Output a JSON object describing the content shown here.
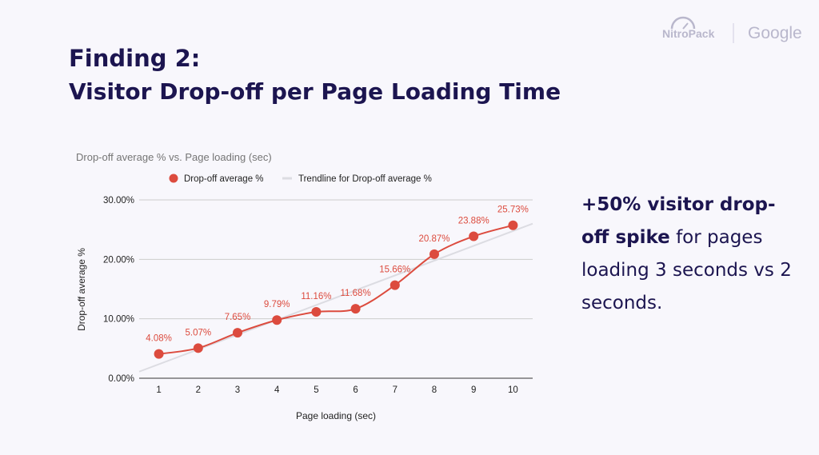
{
  "header": {
    "title": "Finding 2:",
    "subtitle": "Visitor Drop-off per Page Loading Time"
  },
  "logos": {
    "nitropack": "NitroPack",
    "google": "Google"
  },
  "callout": {
    "bold": "+50% visitor drop-off spike",
    "rest": " for pages loading 3 seconds vs 2 seconds."
  },
  "chart_data": {
    "type": "line",
    "title": "Drop-off average % vs. Page loading (sec)",
    "xlabel": "Page loading (sec)",
    "ylabel": "Drop-off average %",
    "x": [
      1,
      2,
      3,
      4,
      5,
      6,
      7,
      8,
      9,
      10
    ],
    "series": [
      {
        "name": "Drop-off average %",
        "values": [
          4.08,
          5.07,
          7.65,
          9.79,
          11.16,
          11.68,
          15.66,
          20.87,
          23.88,
          25.73
        ],
        "labels": [
          "4.08%",
          "5.07%",
          "7.65%",
          "9.79%",
          "11.16%",
          "11.68%",
          "15.66%",
          "20.87%",
          "23.88%",
          "25.73%"
        ],
        "color": "#dc4b3e"
      }
    ],
    "trendline": {
      "name": "Trendline for Drop-off average %",
      "type": "linear",
      "color": "#dcdce2"
    },
    "ylim": [
      0,
      30
    ],
    "yticks": [
      "0.00%",
      "10.00%",
      "20.00%",
      "30.00%"
    ],
    "xticks": [
      "1",
      "2",
      "3",
      "4",
      "5",
      "6",
      "7",
      "8",
      "9",
      "10"
    ],
    "grid": true,
    "legend": "top"
  }
}
